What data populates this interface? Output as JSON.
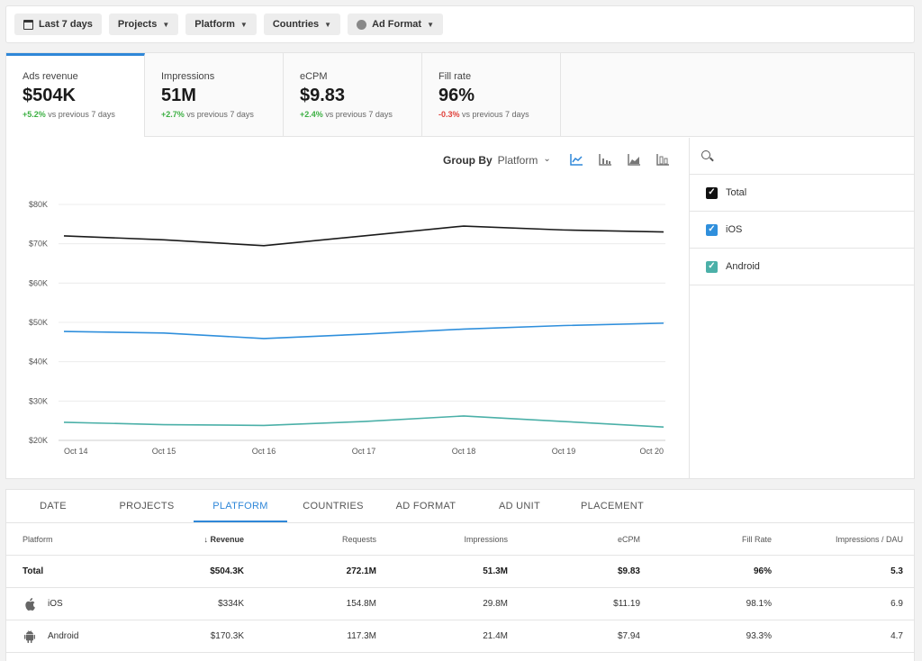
{
  "filters": {
    "date": "Last 7 days",
    "projects": "Projects",
    "platform": "Platform",
    "countries": "Countries",
    "ad_format": "Ad Format"
  },
  "kpis": [
    {
      "label": "Ads revenue",
      "value": "$504K",
      "change": "+5.2%",
      "compare": "vs previous 7 days"
    },
    {
      "label": "Impressions",
      "value": "51M",
      "change": "+2.7%",
      "compare": "vs previous 7 days"
    },
    {
      "label": "eCPM",
      "value": "$9.83",
      "change": "+2.4%",
      "compare": "vs previous 7 days"
    },
    {
      "label": "Fill rate",
      "value": "96%",
      "change": "-0.3%",
      "compare": "vs previous 7 days"
    }
  ],
  "group_by": {
    "label": "Group By",
    "value": "Platform"
  },
  "chart_data": {
    "type": "line",
    "x": [
      "Oct 14",
      "Oct 15",
      "Oct 16",
      "Oct 17",
      "Oct 18",
      "Oct 19",
      "Oct 20"
    ],
    "yticks": [
      "$20K",
      "$30K",
      "$40K",
      "$50K",
      "$60K",
      "$70K",
      "$80K"
    ],
    "ylim": [
      20000,
      80000
    ],
    "grid": true,
    "series": [
      {
        "name": "Total",
        "color": "#1a1a1a",
        "values": [
          72000,
          71000,
          69500,
          72000,
          74500,
          73500,
          73000
        ]
      },
      {
        "name": "iOS",
        "color": "#2f8fdc",
        "values": [
          47700,
          47300,
          45900,
          47000,
          48300,
          49200,
          49800
        ]
      },
      {
        "name": "Android",
        "color": "#4bb0a8",
        "values": [
          24600,
          24000,
          23800,
          24800,
          26200,
          24800,
          23400
        ]
      }
    ]
  },
  "legend": [
    {
      "label": "Total",
      "color": "#111111"
    },
    {
      "label": "iOS",
      "color": "#2f8fdc"
    },
    {
      "label": "Android",
      "color": "#4bb0a8"
    }
  ],
  "tabs": [
    "DATE",
    "PROJECTS",
    "PLATFORM",
    "COUNTRIES",
    "AD FORMAT",
    "AD UNIT",
    "PLACEMENT"
  ],
  "table": {
    "columns": [
      "Platform",
      "Revenue",
      "Requests",
      "Impressions",
      "eCPM",
      "Fill Rate",
      "Impressions / DAU"
    ],
    "rows": [
      {
        "platform": "Total",
        "revenue": "$504.3K",
        "requests": "272.1M",
        "impressions": "51.3M",
        "ecpm": "$9.83",
        "fill": "96%",
        "dau": "5.3"
      },
      {
        "platform": "iOS",
        "revenue": "$334K",
        "requests": "154.8M",
        "impressions": "29.8M",
        "ecpm": "$11.19",
        "fill": "98.1%",
        "dau": "6.9"
      },
      {
        "platform": "Android",
        "revenue": "$170.3K",
        "requests": "117.3M",
        "impressions": "21.4M",
        "ecpm": "$7.94",
        "fill": "93.3%",
        "dau": "4.7"
      }
    ]
  }
}
